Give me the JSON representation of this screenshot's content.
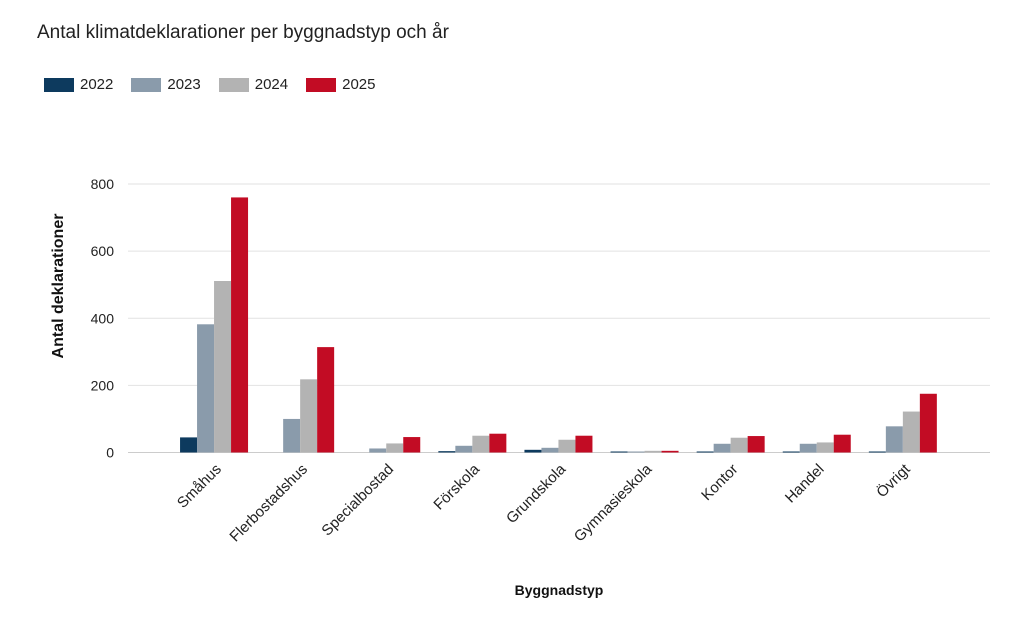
{
  "chart_data": {
    "type": "bar",
    "title": "Antal klimatdeklarationer per byggnadstyp och år",
    "xlabel": "Byggnadstyp",
    "ylabel": "Antal deklarationer",
    "ylim": [
      0,
      800
    ],
    "yticks": [
      0,
      200,
      400,
      600,
      800
    ],
    "grid": true,
    "legend_position": "top-left",
    "categories": [
      "Småhus",
      "Flerbostadshus",
      "Specialbostad",
      "Förskola",
      "Grundskola",
      "Gymnasieskola",
      "Kontor",
      "Handel",
      "Övrigt"
    ],
    "series": [
      {
        "name": "2022",
        "color": "#0d3a5e",
        "values": [
          45,
          0,
          0,
          4,
          8,
          3,
          3,
          3,
          3
        ]
      },
      {
        "name": "2023",
        "color": "#8a9bab",
        "values": [
          382,
          100,
          12,
          20,
          14,
          3,
          26,
          26,
          78
        ]
      },
      {
        "name": "2024",
        "color": "#b3b3b3",
        "values": [
          511,
          218,
          27,
          50,
          38,
          5,
          44,
          30,
          122
        ]
      },
      {
        "name": "2025",
        "color": "#c20c24",
        "values": [
          760,
          314,
          46,
          56,
          50,
          5,
          49,
          53,
          175
        ]
      }
    ]
  }
}
